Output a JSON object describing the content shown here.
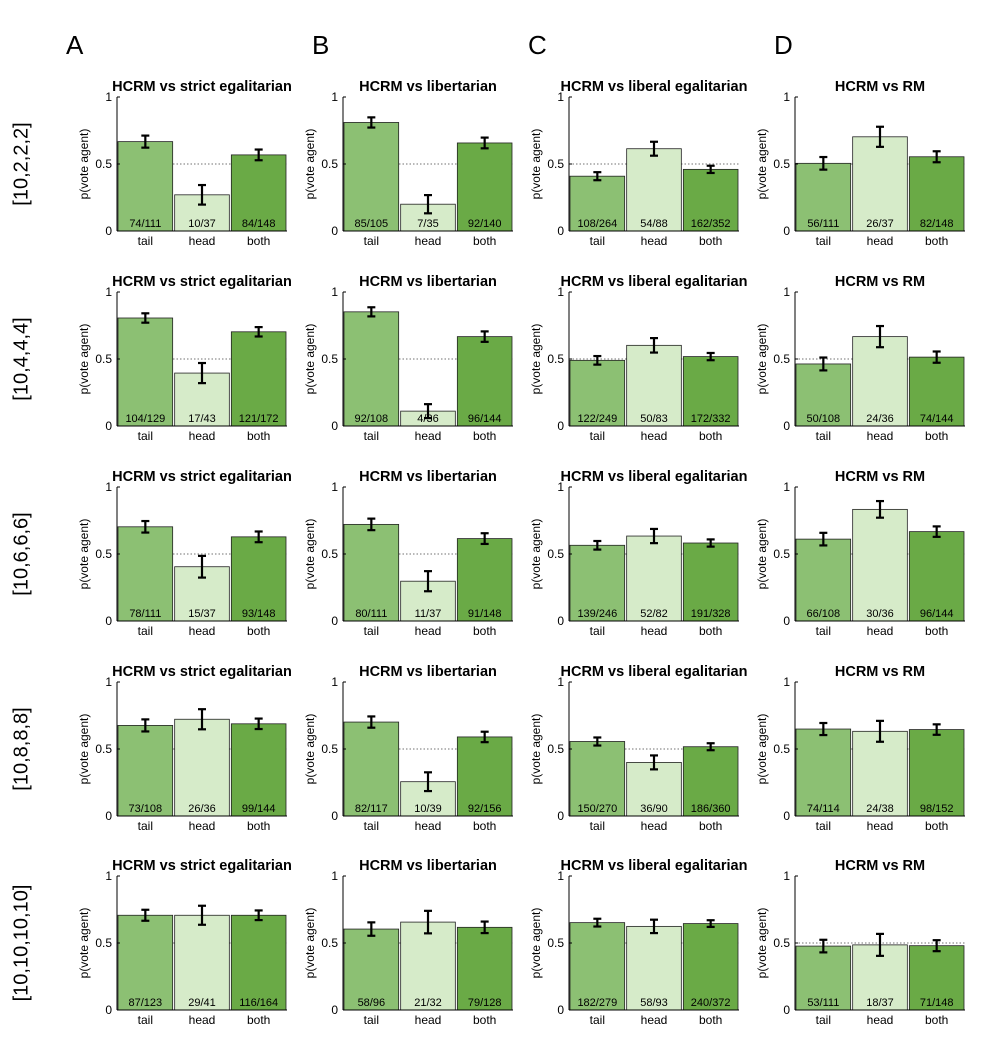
{
  "columns": [
    "A",
    "B",
    "C",
    "D"
  ],
  "rows": [
    "[10,2,2,2]",
    "[10,4,4,4]",
    "[10,6,6,6]",
    "[10,8,8,8]",
    "[10,10,10,10]"
  ],
  "colors": {
    "tail": "#8cc073",
    "head": "#d6ebc9",
    "both": "#6aaa46",
    "edge": "#222222",
    "errorbar": "#000000"
  },
  "chart_data": [
    {
      "type": "bar",
      "title": "HCRM vs strict egalitarian",
      "ylabel": "p(vote agent)",
      "ylim": [
        0,
        1
      ],
      "yticks": [
        "0",
        "0.5",
        "1"
      ],
      "categories": [
        "tail",
        "head",
        "both"
      ],
      "values": [
        0.667,
        0.27,
        0.568
      ],
      "errors": [
        0.045,
        0.073,
        0.04
      ],
      "counts": [
        "74/111",
        "10/37",
        "84/148"
      ],
      "reference_line": 0.5
    },
    {
      "type": "bar",
      "title": "HCRM vs libertarian",
      "ylabel": "p(vote agent)",
      "ylim": [
        0,
        1
      ],
      "yticks": [
        "0",
        "0.5",
        "1"
      ],
      "categories": [
        "tail",
        "head",
        "both"
      ],
      "values": [
        0.81,
        0.2,
        0.657
      ],
      "errors": [
        0.038,
        0.068,
        0.04
      ],
      "counts": [
        "85/105",
        "7/35",
        "92/140"
      ],
      "reference_line": 0.5
    },
    {
      "type": "bar",
      "title": "HCRM vs liberal egalitarian",
      "ylabel": "p(vote agent)",
      "ylim": [
        0,
        1
      ],
      "yticks": [
        "0",
        "0.5",
        "1"
      ],
      "categories": [
        "tail",
        "head",
        "both"
      ],
      "values": [
        0.409,
        0.614,
        0.46
      ],
      "errors": [
        0.03,
        0.052,
        0.027
      ],
      "counts": [
        "108/264",
        "54/88",
        "162/352"
      ],
      "reference_line": 0.5
    },
    {
      "type": "bar",
      "title": "HCRM vs RM",
      "ylabel": "p(vote agent)",
      "ylim": [
        0,
        1
      ],
      "yticks": [
        "0",
        "0.5",
        "1"
      ],
      "categories": [
        "tail",
        "head",
        "both"
      ],
      "values": [
        0.505,
        0.703,
        0.554
      ],
      "errors": [
        0.047,
        0.075,
        0.041
      ],
      "counts": [
        "56/111",
        "26/37",
        "82/148"
      ],
      "reference_line": 0.5
    },
    {
      "type": "bar",
      "title": "HCRM vs strict egalitarian",
      "ylabel": "p(vote agent)",
      "ylim": [
        0,
        1
      ],
      "yticks": [
        "0",
        "0.5",
        "1"
      ],
      "categories": [
        "tail",
        "head",
        "both"
      ],
      "values": [
        0.806,
        0.395,
        0.703
      ],
      "errors": [
        0.035,
        0.075,
        0.035
      ],
      "counts": [
        "104/129",
        "17/43",
        "121/172"
      ],
      "reference_line": 0.5
    },
    {
      "type": "bar",
      "title": "HCRM vs libertarian",
      "ylabel": "p(vote agent)",
      "ylim": [
        0,
        1
      ],
      "yticks": [
        "0",
        "0.5",
        "1"
      ],
      "categories": [
        "tail",
        "head",
        "both"
      ],
      "values": [
        0.852,
        0.111,
        0.667
      ],
      "errors": [
        0.034,
        0.052,
        0.039
      ],
      "counts": [
        "92/108",
        "4/36",
        "96/144"
      ],
      "reference_line": 0.5
    },
    {
      "type": "bar",
      "title": "HCRM vs liberal egalitarian",
      "ylabel": "p(vote agent)",
      "ylim": [
        0,
        1
      ],
      "yticks": [
        "0",
        "0.5",
        "1"
      ],
      "categories": [
        "tail",
        "head",
        "both"
      ],
      "values": [
        0.49,
        0.602,
        0.518
      ],
      "errors": [
        0.032,
        0.054,
        0.027
      ],
      "counts": [
        "122/249",
        "50/83",
        "172/332"
      ],
      "reference_line": 0.5
    },
    {
      "type": "bar",
      "title": "HCRM vs RM",
      "ylabel": "p(vote agent)",
      "ylim": [
        0,
        1
      ],
      "yticks": [
        "0",
        "0.5",
        "1"
      ],
      "categories": [
        "tail",
        "head",
        "both"
      ],
      "values": [
        0.463,
        0.667,
        0.514
      ],
      "errors": [
        0.048,
        0.079,
        0.042
      ],
      "counts": [
        "50/108",
        "24/36",
        "74/144"
      ],
      "reference_line": 0.5
    },
    {
      "type": "bar",
      "title": "HCRM vs strict egalitarian",
      "ylabel": "p(vote agent)",
      "ylim": [
        0,
        1
      ],
      "yticks": [
        "0",
        "0.5",
        "1"
      ],
      "categories": [
        "tail",
        "head",
        "both"
      ],
      "values": [
        0.703,
        0.405,
        0.628
      ],
      "errors": [
        0.043,
        0.081,
        0.04
      ],
      "counts": [
        "78/111",
        "15/37",
        "93/148"
      ],
      "reference_line": 0.5
    },
    {
      "type": "bar",
      "title": "HCRM vs libertarian",
      "ylabel": "p(vote agent)",
      "ylim": [
        0,
        1
      ],
      "yticks": [
        "0",
        "0.5",
        "1"
      ],
      "categories": [
        "tail",
        "head",
        "both"
      ],
      "values": [
        0.721,
        0.297,
        0.615
      ],
      "errors": [
        0.043,
        0.075,
        0.04
      ],
      "counts": [
        "80/111",
        "11/37",
        "91/148"
      ],
      "reference_line": 0.5
    },
    {
      "type": "bar",
      "title": "HCRM vs liberal egalitarian",
      "ylabel": "p(vote agent)",
      "ylim": [
        0,
        1
      ],
      "yticks": [
        "0",
        "0.5",
        "1"
      ],
      "categories": [
        "tail",
        "head",
        "both"
      ],
      "values": [
        0.565,
        0.634,
        0.582
      ],
      "errors": [
        0.032,
        0.053,
        0.027
      ],
      "counts": [
        "139/246",
        "52/82",
        "191/328"
      ],
      "reference_line": 0.5
    },
    {
      "type": "bar",
      "title": "HCRM vs RM",
      "ylabel": "p(vote agent)",
      "ylim": [
        0,
        1
      ],
      "yticks": [
        "0",
        "0.5",
        "1"
      ],
      "categories": [
        "tail",
        "head",
        "both"
      ],
      "values": [
        0.611,
        0.833,
        0.667
      ],
      "errors": [
        0.047,
        0.062,
        0.039
      ],
      "counts": [
        "66/108",
        "30/36",
        "96/144"
      ],
      "reference_line": 0.5
    },
    {
      "type": "bar",
      "title": "HCRM vs strict egalitarian",
      "ylabel": "p(vote agent)",
      "ylim": [
        0,
        1
      ],
      "yticks": [
        "0",
        "0.5",
        "1"
      ],
      "categories": [
        "tail",
        "head",
        "both"
      ],
      "values": [
        0.676,
        0.722,
        0.688
      ],
      "errors": [
        0.045,
        0.075,
        0.039
      ],
      "counts": [
        "73/108",
        "26/36",
        "99/144"
      ],
      "reference_line": 0.5
    },
    {
      "type": "bar",
      "title": "HCRM vs libertarian",
      "ylabel": "p(vote agent)",
      "ylim": [
        0,
        1
      ],
      "yticks": [
        "0",
        "0.5",
        "1"
      ],
      "categories": [
        "tail",
        "head",
        "both"
      ],
      "values": [
        0.701,
        0.256,
        0.59
      ],
      "errors": [
        0.042,
        0.07,
        0.039
      ],
      "counts": [
        "82/117",
        "10/39",
        "92/156"
      ],
      "reference_line": 0.5
    },
    {
      "type": "bar",
      "title": "HCRM vs liberal egalitarian",
      "ylabel": "p(vote agent)",
      "ylim": [
        0,
        1
      ],
      "yticks": [
        "0",
        "0.5",
        "1"
      ],
      "categories": [
        "tail",
        "head",
        "both"
      ],
      "values": [
        0.556,
        0.4,
        0.517
      ],
      "errors": [
        0.03,
        0.052,
        0.026
      ],
      "counts": [
        "150/270",
        "36/90",
        "186/360"
      ],
      "reference_line": 0.5
    },
    {
      "type": "bar",
      "title": "HCRM vs RM",
      "ylabel": "p(vote agent)",
      "ylim": [
        0,
        1
      ],
      "yticks": [
        "0",
        "0.5",
        "1"
      ],
      "categories": [
        "tail",
        "head",
        "both"
      ],
      "values": [
        0.649,
        0.632,
        0.645
      ],
      "errors": [
        0.045,
        0.078,
        0.039
      ],
      "counts": [
        "74/114",
        "24/38",
        "98/152"
      ],
      "reference_line": 0.5
    },
    {
      "type": "bar",
      "title": "HCRM vs strict egalitarian",
      "ylabel": "p(vote agent)",
      "ylim": [
        0,
        1
      ],
      "yticks": [
        "0",
        "0.5",
        "1"
      ],
      "categories": [
        "tail",
        "head",
        "both"
      ],
      "values": [
        0.707,
        0.707,
        0.707
      ],
      "errors": [
        0.041,
        0.071,
        0.036
      ],
      "counts": [
        "87/123",
        "29/41",
        "116/164"
      ],
      "reference_line": 0.5
    },
    {
      "type": "bar",
      "title": "HCRM vs libertarian",
      "ylabel": "p(vote agent)",
      "ylim": [
        0,
        1
      ],
      "yticks": [
        "0",
        "0.5",
        "1"
      ],
      "categories": [
        "tail",
        "head",
        "both"
      ],
      "values": [
        0.604,
        0.656,
        0.617
      ],
      "errors": [
        0.05,
        0.084,
        0.043
      ],
      "counts": [
        "58/96",
        "21/32",
        "79/128"
      ],
      "reference_line": 0.5
    },
    {
      "type": "bar",
      "title": "HCRM vs liberal egalitarian",
      "ylabel": "p(vote agent)",
      "ylim": [
        0,
        1
      ],
      "yticks": [
        "0",
        "0.5",
        "1"
      ],
      "categories": [
        "tail",
        "head",
        "both"
      ],
      "values": [
        0.652,
        0.624,
        0.645
      ],
      "errors": [
        0.029,
        0.05,
        0.025
      ],
      "counts": [
        "182/279",
        "58/93",
        "240/372"
      ],
      "reference_line": 0.5
    },
    {
      "type": "bar",
      "title": "HCRM vs RM",
      "ylabel": "p(vote agent)",
      "ylim": [
        0,
        1
      ],
      "yticks": [
        "0",
        "0.5",
        "1"
      ],
      "categories": [
        "tail",
        "head",
        "both"
      ],
      "values": [
        0.477,
        0.486,
        0.48
      ],
      "errors": [
        0.047,
        0.082,
        0.041
      ],
      "counts": [
        "53/111",
        "18/37",
        "71/148"
      ],
      "reference_line": 0.5
    }
  ]
}
